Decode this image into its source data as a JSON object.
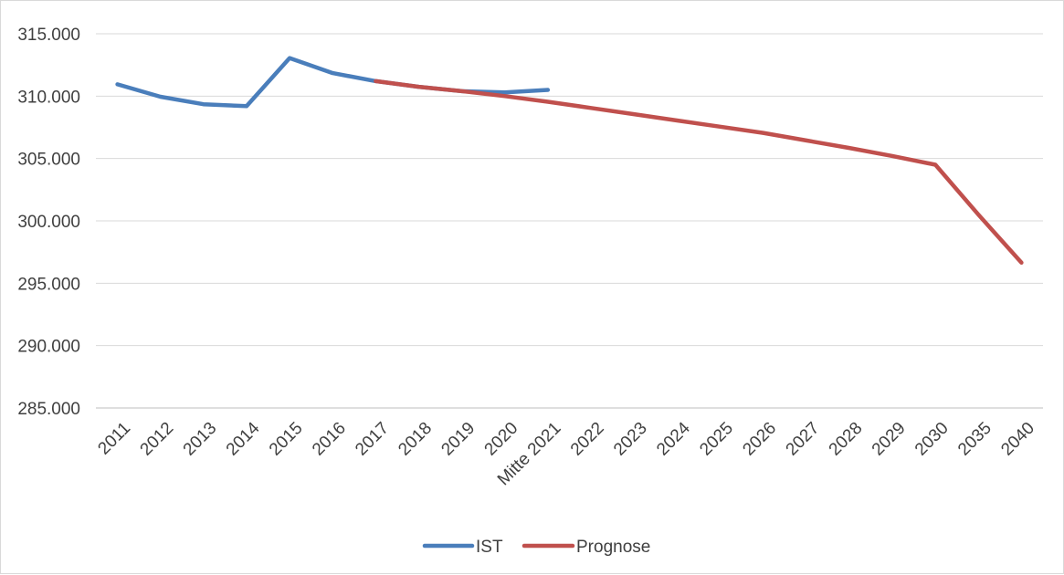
{
  "chart_data": {
    "type": "line",
    "categories": [
      "2011",
      "2012",
      "2013",
      "2014",
      "2015",
      "2016",
      "2017",
      "2018",
      "2019",
      "2020",
      "Mitte 2021",
      "2022",
      "2023",
      "2024",
      "2025",
      "2026",
      "2027",
      "2028",
      "2029",
      "2030",
      "2035",
      "2040"
    ],
    "series": [
      {
        "name": "IST",
        "color": "#4a7ebb",
        "values": [
          310950,
          309950,
          309350,
          309200,
          313050,
          311850,
          311200,
          310750,
          310400,
          310300,
          310500,
          null,
          null,
          null,
          null,
          null,
          null,
          null,
          null,
          null,
          null,
          null
        ]
      },
      {
        "name": "Prognose",
        "color": "#c0504d",
        "values": [
          null,
          null,
          null,
          null,
          null,
          null,
          311200,
          310750,
          310400,
          310000,
          309550,
          309050,
          308550,
          308050,
          307550,
          307050,
          306450,
          305850,
          305200,
          304500,
          300500,
          296650
        ]
      }
    ],
    "yticks": [
      "285.000",
      "290.000",
      "295.000",
      "300.000",
      "305.000",
      "310.000",
      "315.000"
    ],
    "ylim": [
      285000,
      315000
    ],
    "grid": true,
    "legend_position": "bottom"
  }
}
